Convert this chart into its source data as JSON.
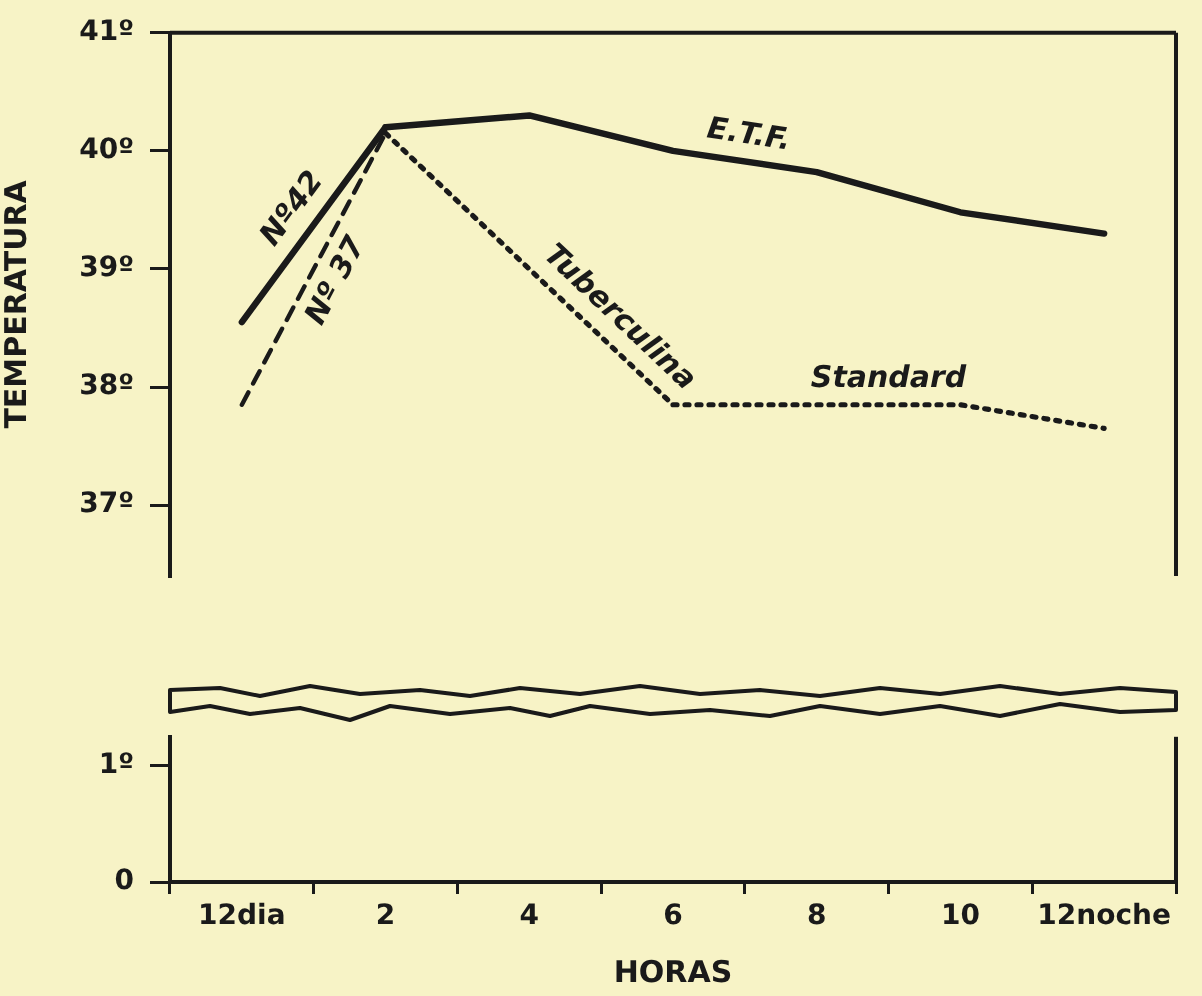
{
  "chart_data": [
    {
      "type": "line",
      "ylabel": "TEMPERATURA",
      "ylim": [
        36.4,
        41
      ],
      "yticks": [
        {
          "value": 37,
          "label": "37º"
        },
        {
          "value": 38,
          "label": "38º"
        },
        {
          "value": 39,
          "label": "39º"
        },
        {
          "value": 40,
          "label": "40º"
        },
        {
          "value": 41,
          "label": "41º"
        }
      ],
      "tick_labels": "y",
      "grid": false,
      "legend": false,
      "marker": "none",
      "series": [
        {
          "name": "Nº42",
          "color": "#1a1a1a",
          "line_style": "solid",
          "values": [
            38.55,
            40.2,
            null,
            null,
            null,
            null,
            null
          ]
        },
        {
          "name": "E.T.F.",
          "color": "#1a1a1a",
          "line_style": "solid",
          "values": [
            null,
            40.2,
            40.3,
            40.0,
            39.82,
            39.48,
            39.3
          ]
        },
        {
          "name": "Nº 37",
          "color": "#1a1a1a",
          "line_style": "dashed",
          "values": [
            37.85,
            40.15,
            null,
            null,
            null,
            null,
            null
          ]
        },
        {
          "name": "Tuberculina",
          "color": "#1a1a1a",
          "line_style": "dotted",
          "values": [
            null,
            40.15,
            39.0,
            37.85,
            null,
            null,
            null
          ]
        },
        {
          "name": "Standard",
          "color": "#1a1a1a",
          "line_style": "dotted",
          "values": [
            null,
            null,
            null,
            37.85,
            37.85,
            37.85,
            37.65
          ]
        }
      ]
    },
    {
      "type": "line",
      "xlabel": "HORAS",
      "categories": [
        "12dia",
        "2",
        "4",
        "6",
        "8",
        "10",
        "12noche"
      ],
      "ylim": [
        0,
        1.25
      ],
      "yticks": [
        0,
        {
          "value": 1,
          "label": "1º"
        }
      ],
      "grid": false,
      "legend": false
    }
  ]
}
